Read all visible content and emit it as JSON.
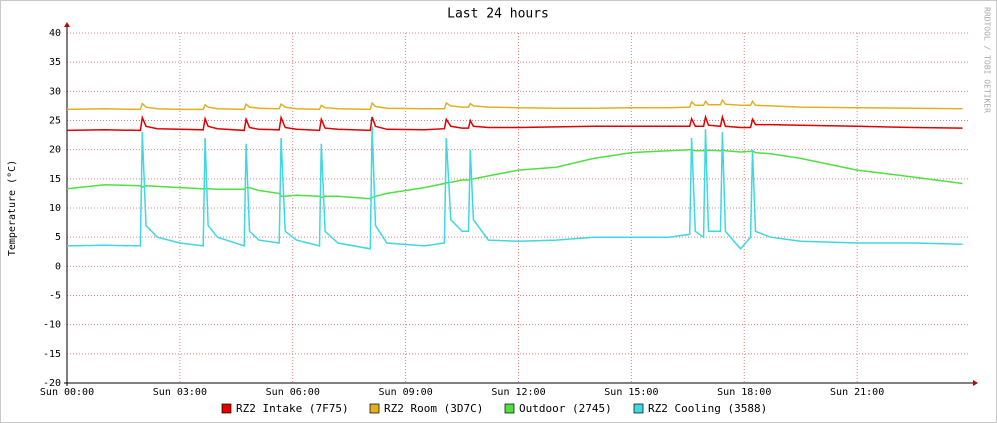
{
  "chart_data": {
    "type": "line",
    "title": "Last 24 hours",
    "y_label": "Temperature (°C)",
    "side_label": "RRDTOOL / TOBI OETIKER",
    "x": [
      0,
      1,
      1.95,
      2,
      2.1,
      2.4,
      3,
      3.62,
      3.67,
      3.75,
      4,
      4.71,
      4.76,
      4.85,
      5.1,
      5.64,
      5.69,
      5.8,
      6.1,
      6.71,
      6.76,
      6.86,
      7.2,
      8.06,
      8.11,
      8.2,
      8.5,
      9.5,
      10.03,
      10.08,
      10.2,
      10.5,
      10.67,
      10.72,
      10.8,
      11.2,
      12,
      13,
      14,
      15,
      16,
      16.55,
      16.6,
      16.7,
      16.92,
      16.97,
      17.05,
      17.37,
      17.42,
      17.5,
      17.9,
      18.17,
      18.22,
      18.3,
      18.7,
      19.5,
      21,
      22.5,
      23.8
    ],
    "series": [
      {
        "name": "RZ2 Intake (7F75)",
        "color": "#e00000",
        "values": [
          23.3,
          23.4,
          23.3,
          25.5,
          24,
          23.6,
          23.5,
          23.4,
          25.3,
          24,
          23.6,
          23.3,
          25.2,
          23.8,
          23.5,
          23.4,
          25.5,
          23.8,
          23.5,
          23.3,
          25.2,
          23.7,
          23.5,
          23.3,
          25.6,
          24,
          23.5,
          23.4,
          23.6,
          25.2,
          24,
          23.7,
          23.7,
          25,
          24,
          23.8,
          23.8,
          23.9,
          24,
          24,
          24,
          24,
          25.3,
          24,
          24,
          25.6,
          24.2,
          24,
          25.6,
          24,
          23.8,
          23.8,
          25.2,
          24.3,
          24.3,
          24.2,
          24,
          23.8,
          23.7
        ]
      },
      {
        "name": "RZ2 Room (3D7C)",
        "color": "#e0b020",
        "values": [
          26.9,
          27,
          26.9,
          27.9,
          27.3,
          27,
          26.9,
          26.9,
          27.7,
          27.3,
          27,
          26.9,
          27.8,
          27.3,
          27.1,
          27,
          27.8,
          27.3,
          27,
          26.9,
          27.6,
          27.2,
          27,
          26.9,
          28,
          27.4,
          27.1,
          27,
          27,
          28,
          27.5,
          27.3,
          27.3,
          27.9,
          27.5,
          27.3,
          27.2,
          27.1,
          27.1,
          27.2,
          27.2,
          27.3,
          28.2,
          27.6,
          27.6,
          28.3,
          27.7,
          27.7,
          28.5,
          27.8,
          27.6,
          27.6,
          28.3,
          27.6,
          27.5,
          27.3,
          27.2,
          27.1,
          27
        ]
      },
      {
        "name": "Outdoor (2745)",
        "color": "#50e040",
        "values": [
          13.3,
          14,
          13.8,
          13.6,
          13.8,
          13.7,
          13.5,
          13.3,
          13.3,
          13.3,
          13.2,
          13.2,
          13.5,
          13.5,
          13,
          12.5,
          12,
          12,
          12.2,
          12,
          11.8,
          12,
          12,
          11.6,
          11.8,
          12,
          12.5,
          13.5,
          14.2,
          14.3,
          14.4,
          14.8,
          14.8,
          14.9,
          15,
          15.5,
          16.5,
          17,
          18.5,
          19.5,
          19.8,
          20,
          20,
          19.8,
          19.8,
          19.9,
          19.9,
          19.8,
          20,
          19.8,
          19.6,
          19.7,
          19.8,
          19.5,
          19.3,
          18.5,
          16.5,
          15.3,
          14.2
        ]
      },
      {
        "name": "RZ2 Cooling (3588)",
        "color": "#40d8e0",
        "values": [
          3.5,
          3.6,
          3.5,
          23,
          7,
          5,
          4,
          3.5,
          22,
          7,
          5,
          3.5,
          21,
          6,
          4.5,
          4,
          22,
          6,
          4.5,
          3.5,
          21,
          6,
          4,
          3,
          24,
          7,
          4,
          3.5,
          4,
          22,
          8,
          6,
          6,
          20,
          8,
          4.5,
          4.3,
          4.5,
          5,
          5,
          5,
          5.5,
          22,
          6,
          5,
          23.5,
          6,
          6,
          23,
          6,
          3,
          5,
          20,
          6,
          5,
          4.3,
          4,
          4,
          3.8
        ]
      }
    ],
    "xlim": [
      0,
      24
    ],
    "xticks": [
      {
        "value": 0,
        "label": "Sun 00:00"
      },
      {
        "value": 3,
        "label": "Sun 03:00"
      },
      {
        "value": 6,
        "label": "Sun 06:00"
      },
      {
        "value": 9,
        "label": "Sun 09:00"
      },
      {
        "value": 12,
        "label": "Sun 12:00"
      },
      {
        "value": 15,
        "label": "Sun 15:00"
      },
      {
        "value": 18,
        "label": "Sun 18:00"
      },
      {
        "value": 21,
        "label": "Sun 21:00"
      }
    ],
    "ylim": [
      -20,
      40
    ],
    "yticks": [
      -20,
      -15,
      -10,
      -5,
      0,
      5,
      10,
      15,
      20,
      25,
      30,
      35,
      40
    ],
    "grid": true
  }
}
